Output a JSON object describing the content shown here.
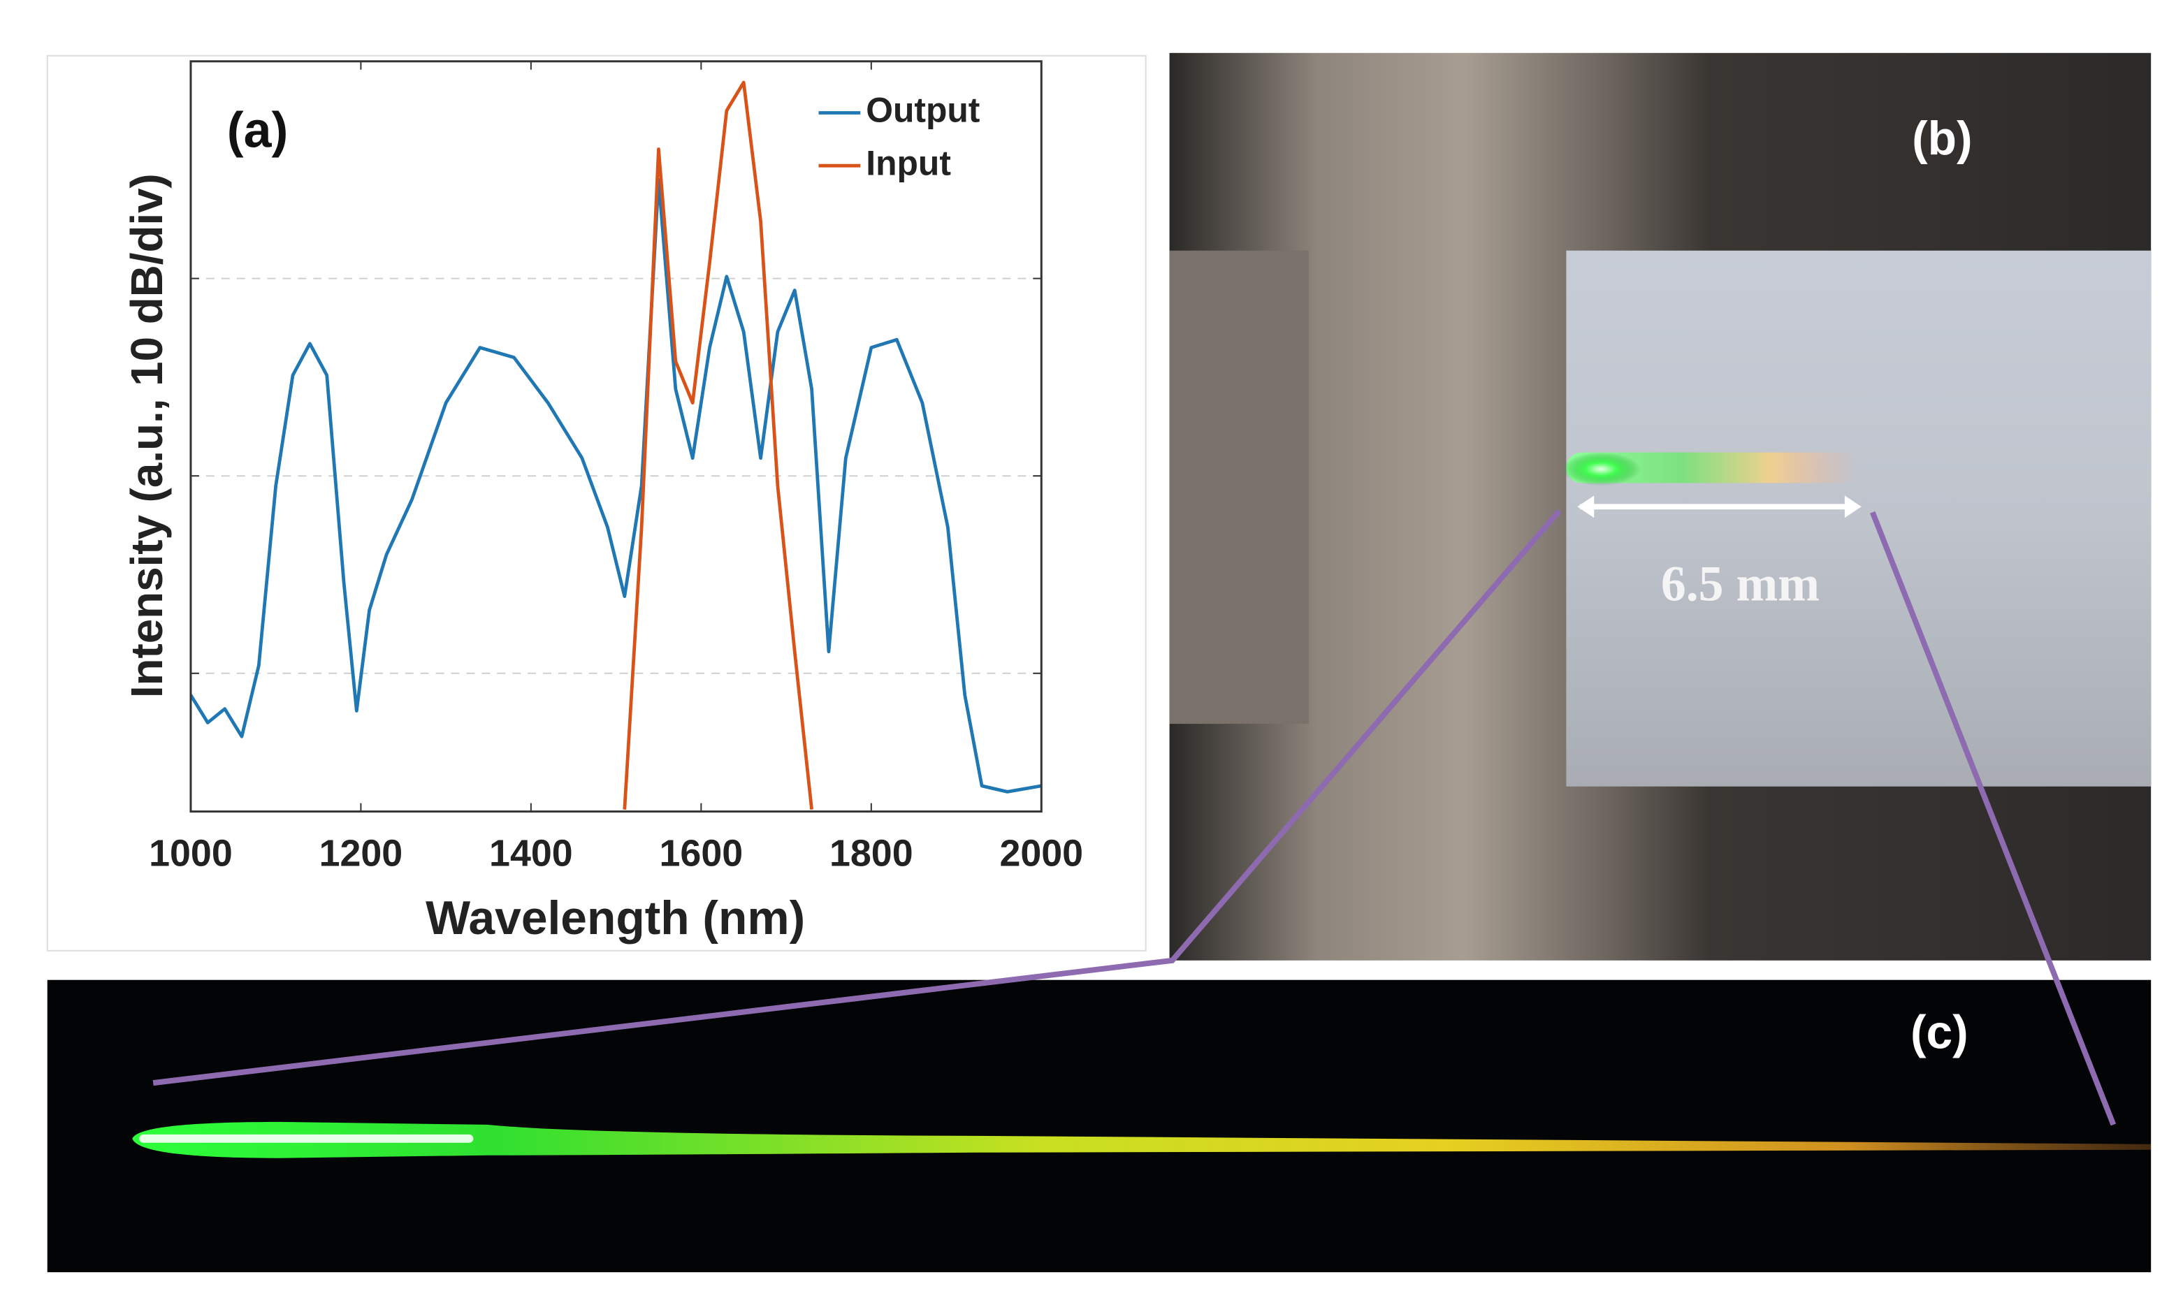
{
  "chart_data": {
    "type": "line",
    "annotation": "(a)",
    "xlabel": "Wavelength (nm)",
    "ylabel": "Intensity (a.u., 10 dB/div)",
    "x": [
      1000,
      1020,
      1040,
      1060,
      1080,
      1100,
      1120,
      1140,
      1160,
      1180,
      1195,
      1210,
      1230,
      1260,
      1300,
      1340,
      1380,
      1420,
      1460,
      1490,
      1510,
      1530,
      1550,
      1570,
      1590,
      1610,
      1630,
      1650,
      1670,
      1690,
      1710,
      1730,
      1750,
      1770,
      1800,
      1830,
      1860,
      1890,
      1910,
      1930,
      1960,
      2000
    ],
    "series": [
      {
        "name": "Output",
        "color": "#1f77b4",
        "values": [
          -31.1,
          -32.5,
          -31.8,
          -33.2,
          -29.6,
          -20.5,
          -14.9,
          -13.3,
          -14.9,
          -25.4,
          -31.9,
          -26.8,
          -24,
          -21.2,
          -16.3,
          -13.5,
          -14,
          -16.3,
          -19.1,
          -22.6,
          -26.1,
          -20.5,
          -5,
          -15.6,
          -19.1,
          -13.5,
          -9.9,
          -12.7,
          -19.1,
          -12.7,
          -10.6,
          -15.6,
          -28.9,
          -19.1,
          -13.5,
          -13.1,
          -16.3,
          -22.6,
          -31.1,
          -35.7,
          -36,
          -35.7
        ]
      },
      {
        "name": "Input",
        "color": "#d95319",
        "values": [
          null,
          null,
          null,
          null,
          null,
          null,
          null,
          null,
          null,
          null,
          null,
          null,
          null,
          null,
          null,
          null,
          null,
          null,
          null,
          null,
          -36.9,
          -22.6,
          -3.45,
          -14.2,
          -16.3,
          -9.2,
          -1.5,
          -0.07,
          -7.1,
          -20.5,
          -28.9,
          -36.9,
          null,
          null,
          null,
          null,
          null,
          null,
          null,
          null,
          null,
          null
        ]
      }
    ],
    "xlim": [
      1000,
      2000
    ],
    "xticks": [
      1000,
      1200,
      1400,
      1600,
      1800,
      2000
    ],
    "ylim": [
      -37,
      1
    ],
    "yticks": [
      -30,
      -20,
      -10
    ],
    "grid": true,
    "legend": "upper right"
  },
  "panels": {
    "b": {
      "label": "(b)",
      "scale_label": "6.5 mm"
    },
    "c": {
      "label": "(c)"
    }
  }
}
